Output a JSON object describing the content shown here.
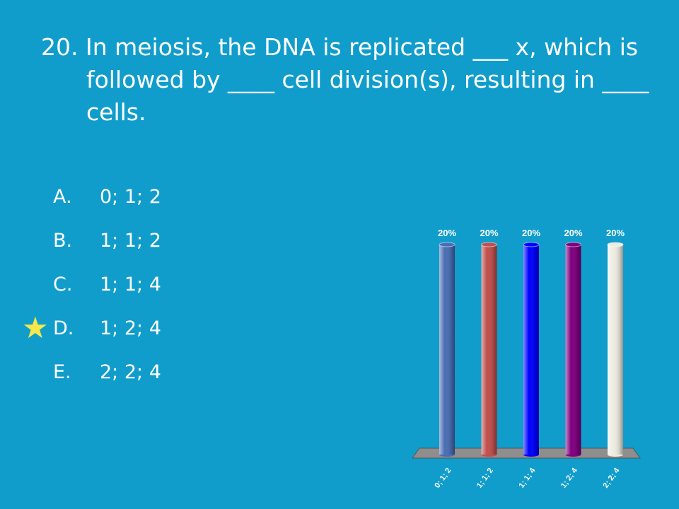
{
  "question": {
    "text": "20.  In meiosis, the DNA is replicated ___ x, which is followed by ____ cell division(s), resulting in ____ cells."
  },
  "answers": [
    {
      "letter": "A.",
      "text": "0; 1; 2",
      "correct": false
    },
    {
      "letter": "B.",
      "text": "1; 1; 2",
      "correct": false
    },
    {
      "letter": "C.",
      "text": "1; 1; 4",
      "correct": false
    },
    {
      "letter": "D.",
      "text": "1; 2; 4",
      "correct": true
    },
    {
      "letter": "E.",
      "text": "2; 2; 4",
      "correct": false
    }
  ],
  "correct_marker": {
    "symbol": "★",
    "icon": "star-icon",
    "color": "#f5e84b"
  },
  "chart_data": {
    "type": "bar",
    "categories": [
      "0; 1; 2",
      "1; 1; 2",
      "1; 1; 4",
      "1; 2; 4",
      "2; 2; 4"
    ],
    "values": [
      20,
      20,
      20,
      20,
      20
    ],
    "value_labels": [
      "20%",
      "20%",
      "20%",
      "20%",
      "20%"
    ],
    "colors": [
      "#4a6db3",
      "#c0504d",
      "#0000ff",
      "#800080",
      "#eeece1"
    ],
    "ylim": [
      0,
      20
    ],
    "title": "",
    "xlabel": "",
    "ylabel": "",
    "grid": false,
    "legend": "none",
    "style": "3d-cylinder"
  }
}
